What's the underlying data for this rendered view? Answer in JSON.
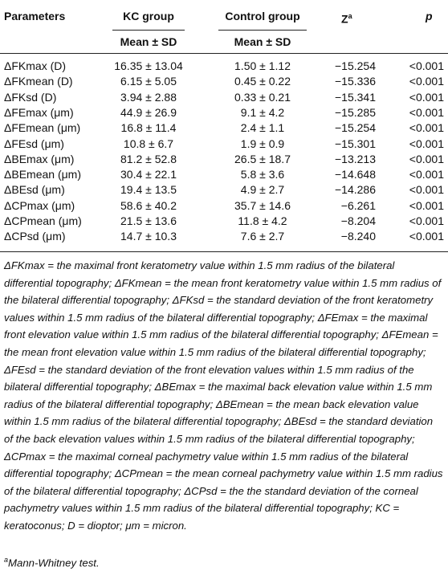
{
  "header": {
    "parameters": "Parameters",
    "kc_group": "KC group",
    "control_group": "Control group",
    "z": "Z",
    "z_sup": "a",
    "p": "p",
    "kc_sub": "Mean ± SD",
    "control_sub": "Mean ± SD"
  },
  "table": {
    "rows": [
      [
        "ΔFKmax (D)",
        "16.35 ± 13.04",
        "1.50 ± 1.12",
        "−15.254",
        "<0.001"
      ],
      [
        "ΔFKmean (D)",
        "6.15 ± 5.05",
        "0.45 ± 0.22",
        "−15.336",
        "<0.001"
      ],
      [
        "ΔFKsd (D)",
        "3.94 ± 2.88",
        "0.33 ± 0.21",
        "−15.341",
        "<0.001"
      ],
      [
        "ΔFEmax (μm)",
        "44.9 ± 26.9",
        "9.1 ± 4.2",
        "−15.285",
        "<0.001"
      ],
      [
        "ΔFEmean (μm)",
        "16.8 ± 11.4",
        "2.4 ± 1.1",
        "−15.254",
        "<0.001"
      ],
      [
        "ΔFEsd (μm)",
        "10.8 ± 6.7",
        "1.9 ± 0.9",
        "−15.301",
        "<0.001"
      ],
      [
        "ΔBEmax (μm)",
        "81.2 ± 52.8",
        "26.5 ± 18.7",
        "−13.213",
        "<0.001"
      ],
      [
        "ΔBEmean (μm)",
        "30.4 ± 22.1",
        "5.8 ± 3.6",
        "−14.648",
        "<0.001"
      ],
      [
        "ΔBEsd (μm)",
        "19.4 ± 13.5",
        "4.9 ± 2.7",
        "−14.286",
        "<0.001"
      ],
      [
        "ΔCPmax (μm)",
        "58.6 ± 40.2",
        "35.7 ± 14.6",
        "−6.261",
        "<0.001"
      ],
      [
        "ΔCPmean (μm)",
        "21.5 ± 13.6",
        "11.8 ± 4.2",
        "−8.204",
        "<0.001"
      ],
      [
        "ΔCPsd (μm)",
        "14.7 ± 10.3",
        "7.6 ± 2.7",
        "−8.240",
        "<0.001"
      ]
    ]
  },
  "footnote": {
    "text": "ΔFKmax = the maximal front keratometry value within 1.5 mm radius of the bilateral differential topography; ΔFKmean = the mean front keratometry value within 1.5 mm radius of the bilateral differential topography; ΔFKsd = the standard deviation of the front keratometry values within 1.5 mm radius of the bilateral differential topography; ΔFEmax = the maximal front elevation value within 1.5 mm radius of the bilateral differential topography; ΔFEmean = the mean front elevation value within 1.5 mm radius of the bilateral differential topography; ΔFEsd = the standard deviation of the front elevation values within 1.5 mm radius of the bilateral differential topography; ΔBEmax = the maximal back elevation value within 1.5 mm radius of the bilateral differential topography; ΔBEmean = the mean back elevation value within 1.5 mm radius of the bilateral differential topography; ΔBEsd = the standard deviation of the back elevation values within 1.5 mm radius of the bilateral differential topography; ΔCPmax = the maximal corneal pachymetry value within 1.5 mm radius of the bilateral differential topography; ΔCPmean = the mean corneal pachymetry value within 1.5 mm radius of the bilateral differential topography; ΔCPsd = the the standard deviation of the corneal pachymetry values within 1.5 mm radius of the bilateral differential topography; KC = keratoconus; D = dioptor; μm = micron.",
    "mark": "a",
    "note": "Mann-Whitney test."
  }
}
